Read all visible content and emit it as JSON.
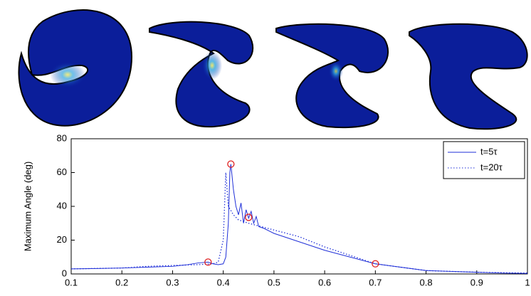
{
  "chart_data": {
    "type": "line",
    "y_label": "Maximum Angle (deg)",
    "xlim": [
      0.1,
      1
    ],
    "xticks": [
      0.1,
      0.2,
      0.3,
      0.4,
      0.5,
      0.6,
      0.7,
      0.8,
      0.9,
      1
    ],
    "ylim": [
      0,
      80
    ],
    "yticks": [
      0,
      20,
      40,
      60,
      80
    ],
    "legend": "upper right",
    "series": [
      {
        "name": "t=5τ",
        "color": "#1f2fd8",
        "style": "solid",
        "x": [
          0.1,
          0.15,
          0.2,
          0.25,
          0.3,
          0.33,
          0.35,
          0.37,
          0.38,
          0.39,
          0.4,
          0.405,
          0.41,
          0.413,
          0.415,
          0.42,
          0.425,
          0.43,
          0.435,
          0.44,
          0.445,
          0.45,
          0.455,
          0.46,
          0.465,
          0.47,
          0.48,
          0.5,
          0.52,
          0.55,
          0.58,
          0.6,
          0.65,
          0.7,
          0.75,
          0.8,
          0.85,
          0.9,
          0.95,
          1
        ],
        "values": [
          3,
          3.2,
          3.5,
          4,
          4.5,
          5.5,
          6.5,
          7,
          6,
          5.5,
          6,
          10,
          30,
          60,
          65,
          50,
          40,
          35,
          42,
          30,
          38,
          33,
          37,
          30,
          34,
          28,
          27,
          24,
          22,
          19,
          16,
          14,
          10,
          6,
          4,
          2,
          1.5,
          1,
          0.5,
          0.3
        ]
      },
      {
        "name": "t=20τ",
        "color": "#1f2fd8",
        "style": "dotted",
        "x": [
          0.1,
          0.2,
          0.25,
          0.3,
          0.35,
          0.38,
          0.39,
          0.4,
          0.405,
          0.41,
          0.42,
          0.43,
          0.45,
          0.5,
          0.55,
          0.6,
          0.65,
          0.7,
          0.75,
          0.8,
          0.9,
          1
        ],
        "values": [
          3,
          3.5,
          4.5,
          5,
          5.5,
          6,
          7,
          20,
          60,
          40,
          35,
          32,
          30,
          26,
          22,
          16,
          11,
          6,
          4,
          2,
          1,
          0.5
        ]
      }
    ],
    "markers": {
      "color": "#e02020",
      "x": [
        0.37,
        0.415,
        0.45,
        0.7
      ],
      "values": [
        7,
        65,
        33.5,
        6
      ]
    }
  }
}
